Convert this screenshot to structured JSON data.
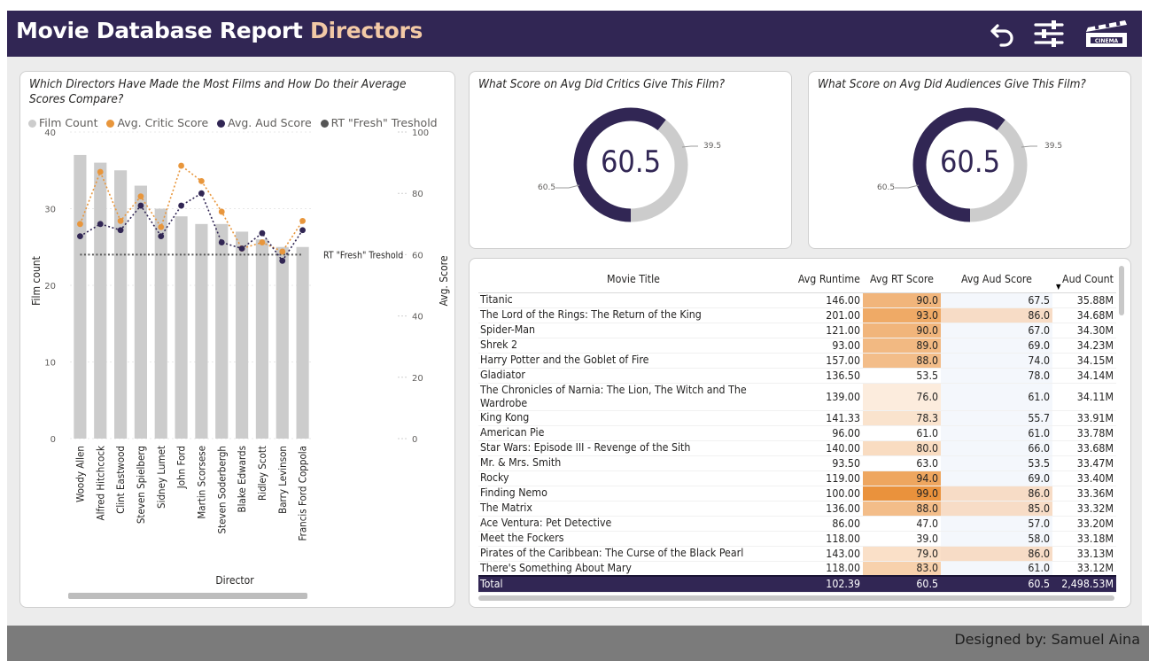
{
  "header": {
    "title_main": "Movie Database Report",
    "title_accent": "Directors",
    "icons": [
      "back-arrow-icon",
      "filter-sliders-icon",
      "cinema-ticket-icon"
    ]
  },
  "colors": {
    "header_bg": "#312654",
    "accent_text": "#f2c9a6",
    "film_count": "#cccccc",
    "critic": "#e8963c",
    "audience": "#312654",
    "threshold": "#555555"
  },
  "bar_card": {
    "title": "Which Directors Have Made the Most Films and How Do their Average Scores Compare?",
    "legend": [
      {
        "label": "Film Count",
        "color": "#cccccc"
      },
      {
        "label": "Avg. Critic Score",
        "color": "#e8963c"
      },
      {
        "label": "Avg. Aud Score",
        "color": "#312654"
      },
      {
        "label": "RT \"Fresh\" Treshold",
        "color": "#555555"
      }
    ],
    "threshold_label": "RT \"Fresh\" Treshold"
  },
  "chart_data": {
    "type": "bar",
    "categories": [
      "Woody Allen",
      "Alfred Hitchcock",
      "Clint Eastwood",
      "Steven Spielberg",
      "Sidney Lumet",
      "John Ford",
      "Martin Scorsese",
      "Steven Soderbergh",
      "Blake Edwards",
      "Ridley Scott",
      "Barry Levinson",
      "Francis Ford Coppola"
    ],
    "series": [
      {
        "name": "Film Count",
        "type": "bar",
        "axis": "left",
        "values": [
          37,
          36,
          35,
          33,
          30,
          29,
          28,
          28,
          27,
          26,
          25,
          25
        ]
      },
      {
        "name": "Avg. Critic Score",
        "type": "line",
        "axis": "right",
        "values": [
          70,
          87,
          71,
          79,
          69,
          89,
          84,
          74,
          62,
          64,
          61,
          71
        ]
      },
      {
        "name": "Avg. Aud Score",
        "type": "line",
        "axis": "right",
        "values": [
          66,
          70,
          68,
          76,
          66,
          76,
          80,
          64,
          62,
          67,
          58,
          68
        ]
      },
      {
        "name": "RT \"Fresh\" Treshold",
        "type": "line",
        "axis": "right",
        "values": [
          60,
          60,
          60,
          60,
          60,
          60,
          60,
          60,
          60,
          60,
          60,
          60
        ]
      }
    ],
    "xlabel": "Director",
    "ylabel": "Film count",
    "ylabel_right": "Avg. Score",
    "ylim": [
      0,
      40
    ],
    "ylim_right": [
      0,
      100
    ],
    "yticks": [
      "0",
      "10",
      "20",
      "30",
      "40"
    ],
    "yticks_right": [
      "0",
      "20",
      "40",
      "60",
      "80",
      "100"
    ],
    "grid": true
  },
  "critics_card": {
    "title": "What Score on Avg Did Critics Give This Film?",
    "value": "60.5",
    "filled_label": "60.5",
    "remaining_label": "39.5",
    "fraction": 0.605
  },
  "audience_card": {
    "title": "What Score on Avg Did Audiences Give This Film?",
    "value": "60.5",
    "filled_label": "60.5",
    "remaining_label": "39.5",
    "fraction": 0.605
  },
  "table": {
    "headers": [
      "Movie Title",
      "Avg Runtime",
      "Avg RT Score",
      "Avg Aud Score",
      "Aud Count"
    ],
    "sort_indicator": "▼",
    "rows": [
      [
        "Titanic",
        "146.00",
        "90.0",
        "67.5",
        "35.88M"
      ],
      [
        "The Lord of the Rings: The Return of the King",
        "201.00",
        "93.0",
        "86.0",
        "34.68M"
      ],
      [
        "Spider-Man",
        "121.00",
        "90.0",
        "67.0",
        "34.30M"
      ],
      [
        "Shrek 2",
        "93.00",
        "89.0",
        "69.0",
        "34.23M"
      ],
      [
        "Harry Potter and the Goblet of Fire",
        "157.00",
        "88.0",
        "74.0",
        "34.15M"
      ],
      [
        "Gladiator",
        "136.50",
        "53.5",
        "78.0",
        "34.14M"
      ],
      [
        "The Chronicles of Narnia: The Lion, The Witch and The Wardrobe",
        "139.00",
        "76.0",
        "61.0",
        "34.11M"
      ],
      [
        "King Kong",
        "141.33",
        "78.3",
        "55.7",
        "33.91M"
      ],
      [
        "American Pie",
        "96.00",
        "61.0",
        "61.0",
        "33.78M"
      ],
      [
        "Star Wars: Episode III - Revenge of the Sith",
        "140.00",
        "80.0",
        "66.0",
        "33.68M"
      ],
      [
        "Mr. & Mrs. Smith",
        "93.50",
        "63.0",
        "53.5",
        "33.47M"
      ],
      [
        "Rocky",
        "119.00",
        "94.0",
        "69.0",
        "33.40M"
      ],
      [
        "Finding Nemo",
        "100.00",
        "99.0",
        "86.0",
        "33.36M"
      ],
      [
        "The Matrix",
        "136.00",
        "88.0",
        "85.0",
        "33.32M"
      ],
      [
        "Ace Ventura: Pet Detective",
        "86.00",
        "47.0",
        "57.0",
        "33.20M"
      ],
      [
        "Meet the Fockers",
        "118.00",
        "39.0",
        "58.0",
        "33.18M"
      ],
      [
        "Pirates of the Caribbean: The Curse of the Black Pearl",
        "143.00",
        "79.0",
        "86.0",
        "33.13M"
      ],
      [
        "There's Something About Mary",
        "118.00",
        "83.0",
        "61.0",
        "33.12M"
      ]
    ],
    "total": [
      "Total",
      "102.39",
      "60.5",
      "60.5",
      "2,498.53M"
    ]
  },
  "footer": {
    "credit": "Designed by: Samuel Aina"
  }
}
